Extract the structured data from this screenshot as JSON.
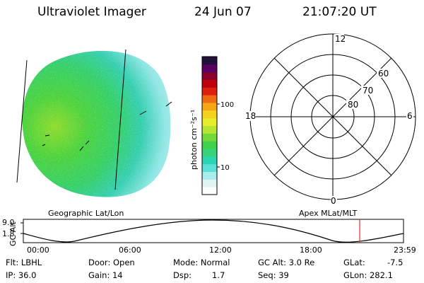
{
  "header": {
    "title": "Ultraviolet Imager",
    "date": "24 Jun 07",
    "time": "21:07:20 UT"
  },
  "colorbar": {
    "label": "photon cm⁻²s⁻¹",
    "ticks": [
      "100",
      "10"
    ],
    "scale": "log",
    "colors": [
      "#ffffff",
      "#e0f4f4",
      "#a8ecec",
      "#5be0d8",
      "#2ad6b0",
      "#35d47a",
      "#3ed24a",
      "#73d93a",
      "#b6e533",
      "#e6ee2b",
      "#f6d21e",
      "#f6a515",
      "#ee6a10",
      "#e0200e",
      "#c2000a",
      "#8a002a",
      "#5a0062",
      "#20103a"
    ]
  },
  "polar_plot": {
    "mlt_labels": [
      "12",
      "18",
      "6",
      "0"
    ],
    "lat_labels": [
      "60",
      "70",
      "80"
    ]
  },
  "timeline": {
    "ylabel": "GC Alt",
    "y_ticks": [
      "9.0",
      "1.8"
    ],
    "left_title": "Geographic Lat/Lon",
    "right_title": "Apex MLat/MLT",
    "x_ticks": [
      "00:00",
      "06:00",
      "12:00",
      "18:00",
      "23:59"
    ],
    "current_marker_time": "21:07"
  },
  "info": {
    "row1": [
      "Flt: LBHL",
      "Door: Open",
      "Mode: Normal",
      "GC Alt: 3.0 Re",
      "GLat:",
      "-7.5"
    ],
    "row2": [
      "IP: 36.0",
      "Gain: 14",
      "Dsp:",
      "1.7",
      "Seq: 39",
      "GLon: 282.1"
    ]
  },
  "colors": {
    "accent_marker": "#e0301e",
    "disk_dayside": "#3fd24e",
    "disk_nightside": "#a8ecec"
  }
}
